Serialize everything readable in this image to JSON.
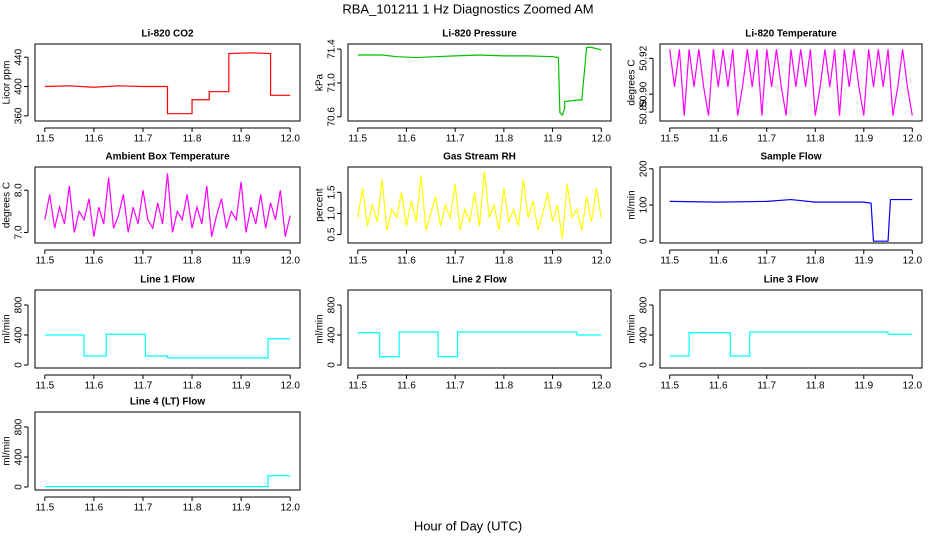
{
  "title": "RBA_101211  1 Hz Diagnostics Zoomed AM",
  "xlabel": "Hour of Day (UTC)",
  "chart_data": [
    {
      "type": "line",
      "title": "Li-820 CO2",
      "ylabel": "Licor ppm",
      "color": "#ff0000",
      "x": [
        11.5,
        11.55,
        11.6,
        11.65,
        11.7,
        11.75,
        11.75,
        11.8,
        11.8,
        11.835,
        11.835,
        11.875,
        11.875,
        11.92,
        11.96,
        11.96,
        12.0
      ],
      "values": [
        400,
        401,
        399,
        401,
        400,
        400,
        363,
        363,
        382,
        382,
        393,
        393,
        445,
        446,
        445,
        388,
        388
      ],
      "xlim": [
        11.48,
        12.02
      ],
      "ylim": [
        353,
        458
      ],
      "xticks": [
        11.5,
        11.6,
        11.7,
        11.8,
        11.9,
        {
          "value": 12,
          "label": "12.0"
        }
      ],
      "yticks": [
        360,
        400,
        440
      ]
    },
    {
      "type": "line",
      "title": "Li-820 Pressure",
      "ylabel": "kPa",
      "color": "#00c000",
      "x": [
        11.5,
        11.55,
        11.58,
        11.62,
        11.66,
        11.7,
        11.75,
        11.8,
        11.85,
        11.9,
        11.912,
        11.915,
        11.92,
        11.925,
        11.925,
        11.955,
        11.96,
        11.97,
        11.98,
        12.0
      ],
      "values": [
        71.33,
        71.33,
        71.31,
        71.3,
        71.31,
        71.32,
        71.33,
        71.32,
        71.32,
        71.31,
        71.3,
        70.65,
        70.62,
        70.7,
        70.78,
        70.8,
        70.8,
        71.42,
        71.42,
        71.39
      ],
      "xlim": [
        11.48,
        12.02
      ],
      "ylim": [
        70.55,
        71.46
      ],
      "xticks": [
        11.5,
        11.6,
        11.7,
        11.8,
        11.9,
        {
          "value": 12,
          "label": "12.0"
        }
      ],
      "yticks": [
        70.6,
        {
          "value": 71,
          "label": "71.0"
        },
        71.4
      ]
    },
    {
      "type": "line",
      "title": "Li-820 Temperature",
      "ylabel": "degrees C",
      "color": "#ff00ff",
      "x": [
        11.5,
        11.51,
        11.52,
        11.53,
        11.54,
        11.55,
        11.56,
        11.57,
        11.58,
        11.59,
        11.6,
        11.61,
        11.62,
        11.63,
        11.64,
        11.65,
        11.66,
        11.67,
        11.68,
        11.69,
        11.7,
        11.71,
        11.72,
        11.73,
        11.74,
        11.75,
        11.76,
        11.77,
        11.78,
        11.79,
        11.8,
        11.81,
        11.82,
        11.83,
        11.84,
        11.85,
        11.86,
        11.87,
        11.88,
        11.89,
        11.9,
        11.91,
        11.92,
        11.93,
        11.94,
        11.95,
        11.96,
        11.97,
        11.98,
        11.99,
        12.0
      ],
      "values": [
        50.925,
        50.904,
        50.925,
        50.888,
        50.925,
        50.904,
        50.925,
        50.904,
        50.888,
        50.925,
        50.904,
        50.925,
        50.904,
        50.925,
        50.888,
        50.904,
        50.925,
        50.904,
        50.925,
        50.888,
        50.925,
        50.904,
        50.925,
        50.904,
        50.888,
        50.925,
        50.904,
        50.925,
        50.904,
        50.925,
        50.888,
        50.904,
        50.925,
        50.904,
        50.925,
        50.888,
        50.925,
        50.904,
        50.925,
        50.904,
        50.888,
        50.925,
        50.904,
        50.925,
        50.904,
        50.925,
        50.888,
        50.904,
        50.925,
        50.904,
        50.888
      ],
      "xlim": [
        11.48,
        12.02
      ],
      "ylim": [
        50.885,
        50.928
      ],
      "xticks": [
        11.5,
        11.6,
        11.7,
        11.8,
        11.9,
        {
          "value": 12,
          "label": "12.0"
        }
      ],
      "yticks": [
        50.89,
        {
          "value": 50.9,
          "label": "50.90"
        },
        50.92
      ]
    },
    {
      "type": "line",
      "title": "Ambient Box Temperature",
      "ylabel": "degrees C",
      "color": "#ff00ff",
      "x": [
        11.5,
        11.51,
        11.52,
        11.53,
        11.54,
        11.55,
        11.56,
        11.57,
        11.58,
        11.59,
        11.6,
        11.61,
        11.62,
        11.63,
        11.64,
        11.65,
        11.66,
        11.67,
        11.68,
        11.69,
        11.7,
        11.71,
        11.72,
        11.73,
        11.74,
        11.75,
        11.76,
        11.77,
        11.78,
        11.79,
        11.8,
        11.81,
        11.82,
        11.83,
        11.84,
        11.85,
        11.86,
        11.87,
        11.88,
        11.89,
        11.9,
        11.91,
        11.92,
        11.93,
        11.94,
        11.95,
        11.96,
        11.97,
        11.98,
        11.99,
        12.0
      ],
      "values": [
        7.3,
        7.9,
        7.1,
        7.6,
        7.2,
        8.1,
        7.0,
        7.5,
        7.3,
        7.8,
        6.9,
        7.6,
        7.2,
        8.3,
        7.1,
        7.4,
        7.9,
        7.0,
        7.6,
        7.2,
        8.0,
        7.3,
        7.1,
        7.7,
        7.2,
        8.4,
        7.0,
        7.5,
        7.3,
        7.9,
        7.1,
        7.6,
        7.2,
        8.1,
        6.9,
        7.4,
        7.8,
        7.1,
        7.5,
        7.3,
        8.2,
        7.0,
        7.6,
        7.2,
        7.9,
        7.1,
        7.7,
        7.3,
        8.0,
        6.9,
        7.4
      ],
      "xlim": [
        11.48,
        12.02
      ],
      "ylim": [
        6.75,
        8.55
      ],
      "xticks": [
        11.5,
        11.6,
        11.7,
        11.8,
        11.9,
        {
          "value": 12,
          "label": "12.0"
        }
      ],
      "yticks": [
        {
          "value": 7,
          "label": "7.0"
        },
        {
          "value": 8,
          "label": "8.0"
        }
      ]
    },
    {
      "type": "line",
      "title": "Gas Stream RH",
      "ylabel": "percent",
      "color": "#ffff00",
      "x": [
        11.5,
        11.51,
        11.52,
        11.53,
        11.54,
        11.55,
        11.56,
        11.57,
        11.58,
        11.59,
        11.6,
        11.61,
        11.62,
        11.63,
        11.64,
        11.65,
        11.66,
        11.67,
        11.68,
        11.69,
        11.7,
        11.71,
        11.72,
        11.73,
        11.74,
        11.75,
        11.76,
        11.77,
        11.78,
        11.79,
        11.8,
        11.81,
        11.82,
        11.83,
        11.84,
        11.85,
        11.86,
        11.87,
        11.88,
        11.89,
        11.9,
        11.91,
        11.92,
        11.93,
        11.94,
        11.95,
        11.96,
        11.97,
        11.98,
        11.99,
        12.0
      ],
      "values": [
        0.9,
        1.6,
        0.7,
        1.2,
        0.8,
        1.8,
        0.6,
        1.1,
        0.9,
        1.5,
        0.7,
        1.3,
        0.8,
        1.9,
        0.6,
        1.0,
        1.4,
        0.7,
        1.2,
        0.9,
        1.7,
        0.6,
        1.1,
        0.8,
        1.5,
        0.7,
        2.0,
        0.9,
        1.2,
        0.6,
        1.6,
        0.8,
        1.1,
        0.7,
        1.8,
        0.9,
        1.3,
        0.6,
        1.0,
        1.5,
        0.8,
        1.2,
        0.4,
        1.7,
        0.9,
        1.1,
        0.6,
        1.4,
        0.8,
        1.6,
        0.9
      ],
      "xlim": [
        11.48,
        12.02
      ],
      "ylim": [
        0.3,
        2.1
      ],
      "xticks": [
        11.5,
        11.6,
        11.7,
        11.8,
        11.9,
        {
          "value": 12,
          "label": "12.0"
        }
      ],
      "yticks": [
        0.5,
        {
          "value": 1,
          "label": "1.0"
        },
        1.5
      ]
    },
    {
      "type": "line",
      "title": "Sample Flow",
      "ylabel": "ml/min",
      "color": "#0000ff",
      "x": [
        11.5,
        11.6,
        11.7,
        11.75,
        11.8,
        11.9,
        11.915,
        11.92,
        11.95,
        11.955,
        12.0
      ],
      "values": [
        110,
        108,
        110,
        115,
        108,
        108,
        105,
        0,
        0,
        115,
        115
      ],
      "xlim": [
        11.48,
        12.02
      ],
      "ylim": [
        -5,
        205
      ],
      "xticks": [
        11.5,
        11.6,
        11.7,
        11.8,
        11.9,
        {
          "value": 12,
          "label": "12.0"
        }
      ],
      "yticks": [
        0,
        100,
        200
      ]
    },
    {
      "type": "line",
      "title": "Line 1 Flow",
      "ylabel": "ml/min",
      "color": "#00ffff",
      "x": [
        11.5,
        11.58,
        11.58,
        11.625,
        11.625,
        11.705,
        11.705,
        11.75,
        11.75,
        11.955,
        11.955,
        12.0
      ],
      "values": [
        400,
        400,
        120,
        120,
        410,
        410,
        120,
        120,
        95,
        95,
        350,
        350
      ],
      "xlim": [
        11.48,
        12.02
      ],
      "ylim": [
        -40,
        1000
      ],
      "xticks": [
        11.5,
        11.6,
        11.7,
        11.8,
        11.9,
        {
          "value": 12,
          "label": "12.0"
        }
      ],
      "yticks": [
        0,
        400,
        800
      ]
    },
    {
      "type": "line",
      "title": "Line 2 Flow",
      "ylabel": "ml/min",
      "color": "#00ffff",
      "x": [
        11.5,
        11.545,
        11.545,
        11.585,
        11.585,
        11.665,
        11.665,
        11.705,
        11.705,
        11.95,
        11.95,
        12.0
      ],
      "values": [
        430,
        430,
        110,
        110,
        440,
        440,
        110,
        110,
        440,
        440,
        400,
        400
      ],
      "xlim": [
        11.48,
        12.02
      ],
      "ylim": [
        -40,
        1000
      ],
      "xticks": [
        11.5,
        11.6,
        11.7,
        11.8,
        11.9,
        {
          "value": 12,
          "label": "12.0"
        }
      ],
      "yticks": [
        0,
        400,
        800
      ]
    },
    {
      "type": "line",
      "title": "Line 3 Flow",
      "ylabel": "ml/min",
      "color": "#00ffff",
      "x": [
        11.5,
        11.54,
        11.54,
        11.625,
        11.625,
        11.665,
        11.665,
        11.95,
        11.95,
        12.0
      ],
      "values": [
        120,
        120,
        430,
        430,
        120,
        120,
        440,
        440,
        410,
        410
      ],
      "xlim": [
        11.48,
        12.02
      ],
      "ylim": [
        -40,
        1000
      ],
      "xticks": [
        11.5,
        11.6,
        11.7,
        11.8,
        11.9,
        {
          "value": 12,
          "label": "12.0"
        }
      ],
      "yticks": [
        0,
        400,
        800
      ]
    },
    {
      "type": "line",
      "title": "Line 4 (LT) Flow",
      "ylabel": "ml/min",
      "color": "#00ffff",
      "x": [
        11.5,
        11.955,
        11.955,
        12.0
      ],
      "values": [
        5,
        5,
        150,
        150
      ],
      "xlim": [
        11.48,
        12.02
      ],
      "ylim": [
        -40,
        1000
      ],
      "xticks": [
        11.5,
        11.6,
        11.7,
        11.8,
        11.9,
        {
          "value": 12,
          "label": "12.0"
        }
      ],
      "yticks": [
        0,
        400,
        800
      ]
    }
  ]
}
